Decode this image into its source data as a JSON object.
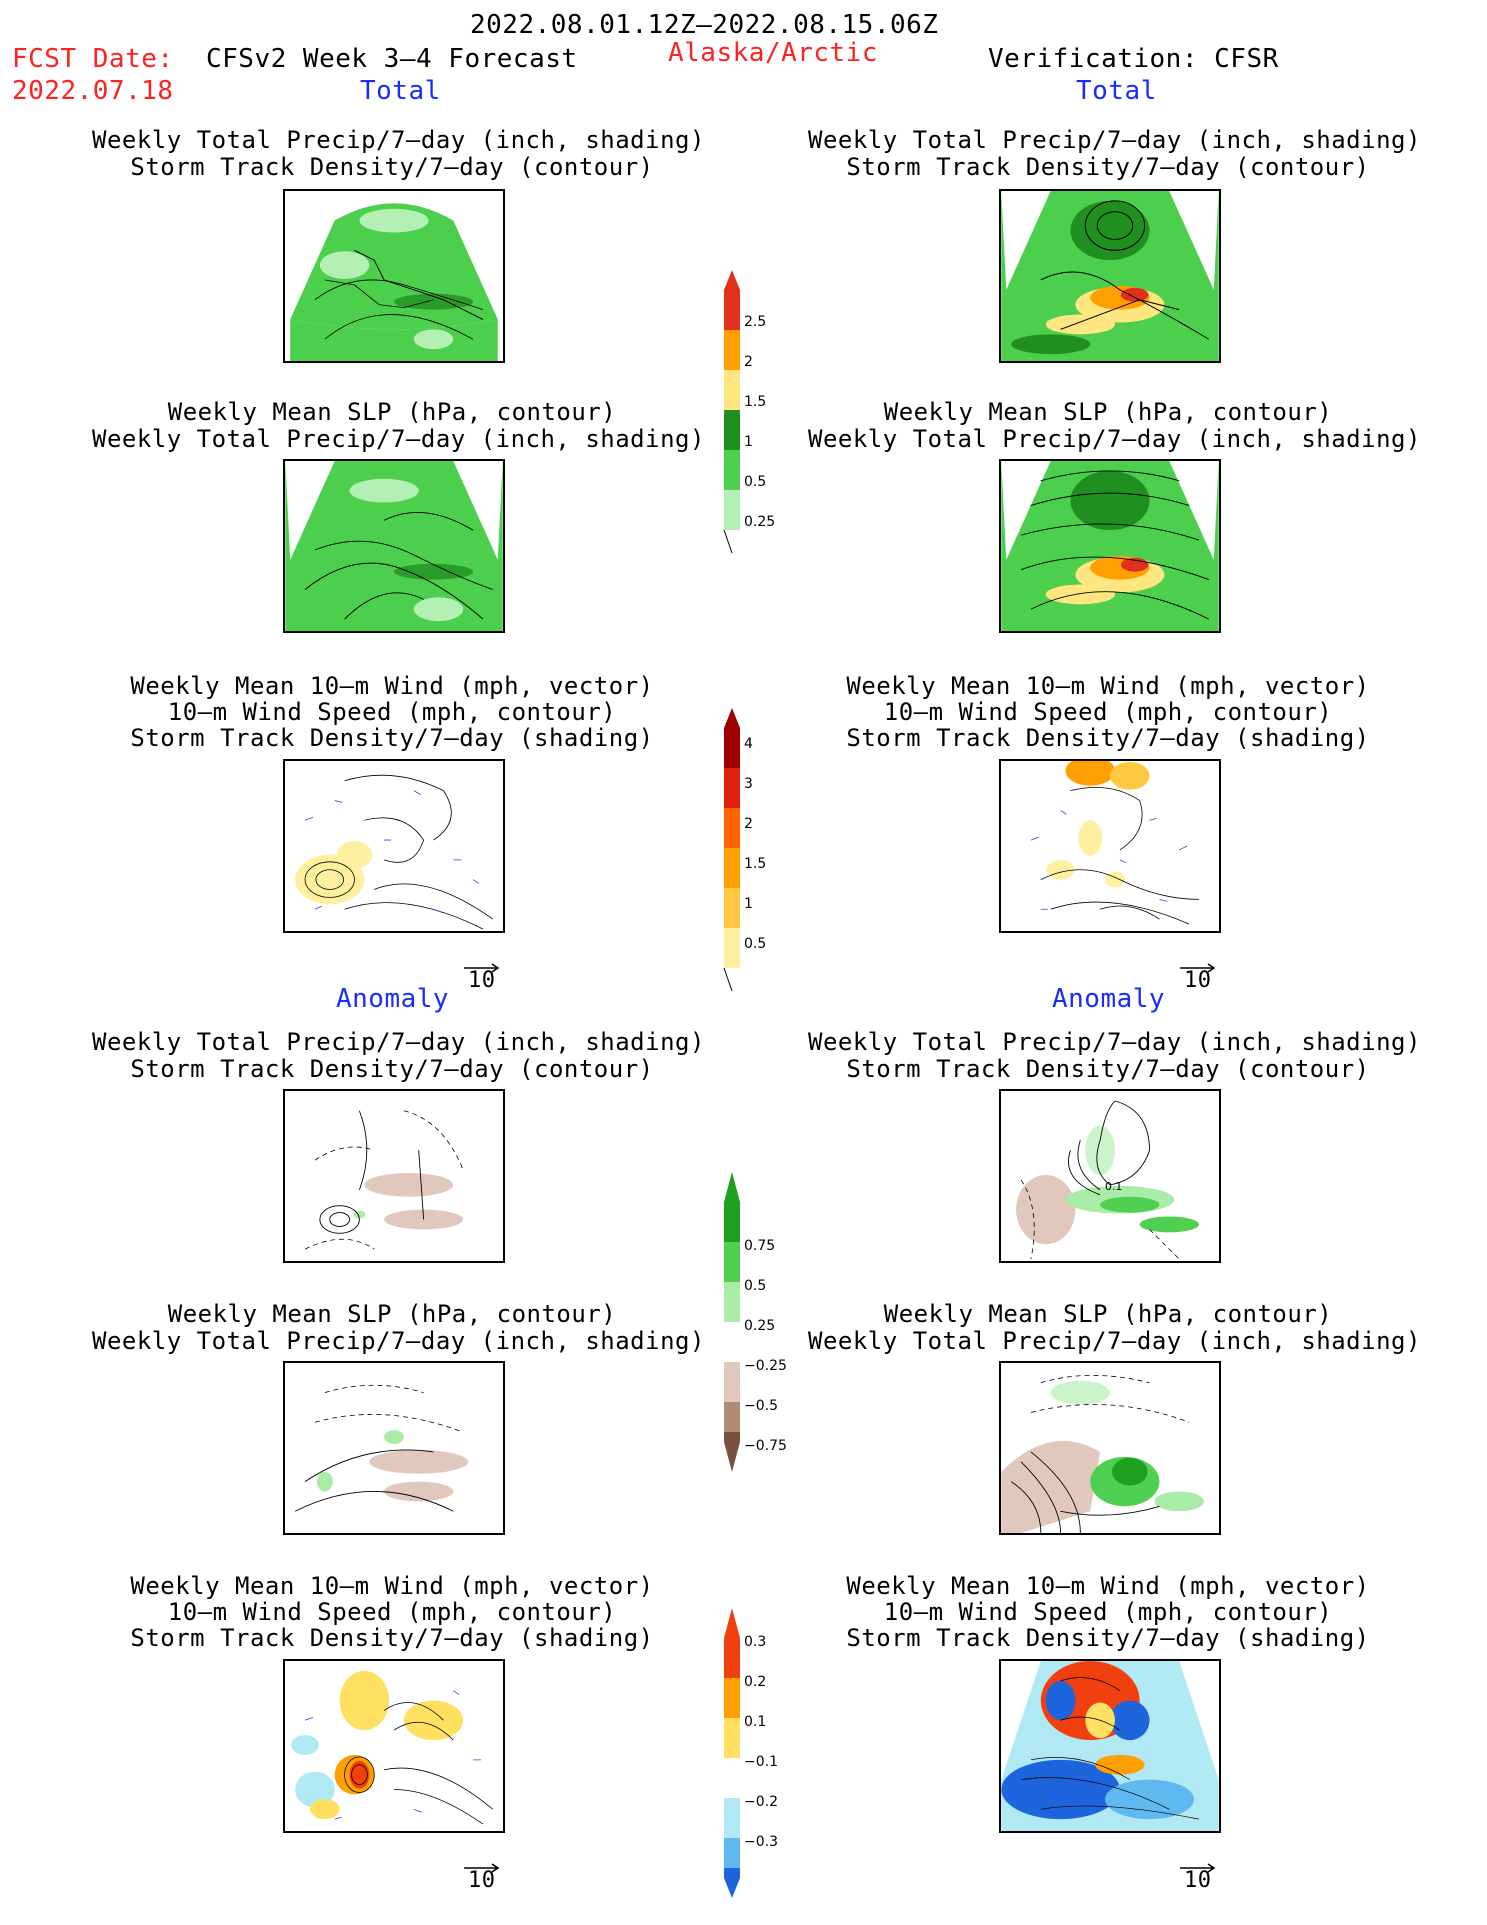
{
  "header": {
    "date_range": "2022.08.01.12Z–2022.08.15.06Z",
    "fcst_label": "FCST Date:",
    "fcst_date": "2022.07.18",
    "model": "CFSv2 Week 3–4 Forecast",
    "region": "Alaska/Arctic",
    "verification": "Verification: CFSR"
  },
  "sections": {
    "total_left": "Total",
    "total_right": "Total",
    "anomaly_left": "Anomaly",
    "anomaly_right": "Anomaly"
  },
  "panels": {
    "precip_track": [
      "Weekly Total Precip/7–day (inch, shading)",
      "Storm Track Density/7–day (contour)"
    ],
    "slp_precip": [
      "Weekly Mean SLP (hPa, contour)",
      "Weekly Total Precip/7–day (inch, shading)"
    ],
    "wind": [
      "Weekly Mean 10–m Wind (mph, vector)",
      "10–m Wind Speed (mph, contour)",
      "Storm Track Density/7–day (shading)"
    ]
  },
  "vector_ref": "10",
  "colorbars": {
    "precip_total": {
      "labels": [
        "2.5",
        "2",
        "1.5",
        "1",
        "0.5",
        "0.25"
      ],
      "colors": [
        "#e0301e",
        "#ffa000",
        "#ffe680",
        "#1f8f1f",
        "#4ccf4c",
        "#b4f0b4"
      ]
    },
    "track_total": {
      "labels": [
        "4",
        "3",
        "2",
        "1.5",
        "1",
        "0.5"
      ],
      "colors": [
        "#a00000",
        "#e0200a",
        "#ff6400",
        "#ffa000",
        "#ffc840",
        "#fff0a0"
      ]
    },
    "precip_anom": {
      "labels": [
        "0.75",
        "0.5",
        "0.25",
        "−0.25",
        "−0.5",
        "−0.75"
      ],
      "colors_top": [
        "#1f9f1f",
        "#50d050",
        "#a8eca8"
      ],
      "colors_bottom": [
        "#e0c8bc",
        "#b08878",
        "#7a5040"
      ]
    },
    "track_anom": {
      "labels": [
        "0.3",
        "0.2",
        "0.1",
        "−0.1",
        "−0.2",
        "−0.3"
      ],
      "colors_top": [
        "#f04010",
        "#ffa000",
        "#ffe060"
      ],
      "colors_bottom": [
        "#b0e8f4",
        "#60b8f0",
        "#1e64dc"
      ]
    }
  },
  "contour_label": "0.1"
}
